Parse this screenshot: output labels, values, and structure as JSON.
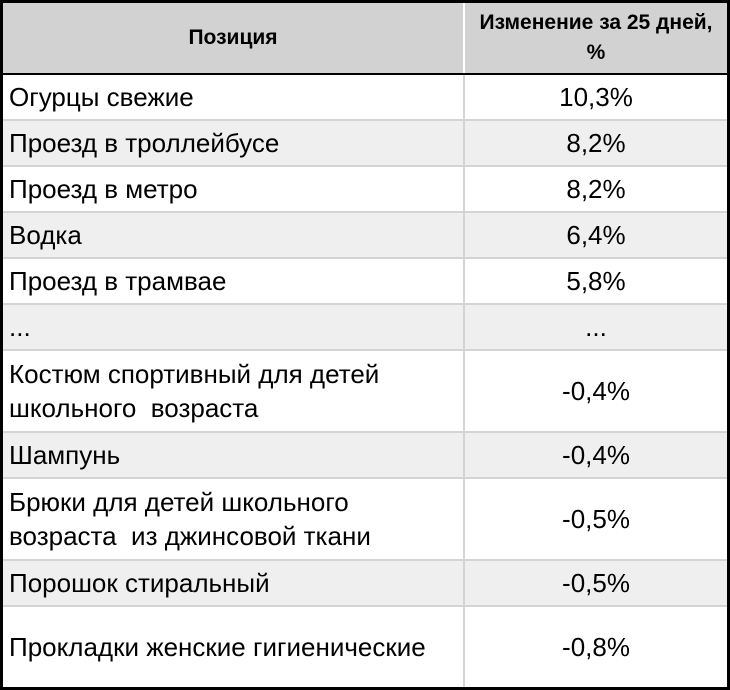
{
  "table": {
    "header": {
      "position": "Позиция",
      "change": "Изменение за 25 дней, %"
    },
    "rows": [
      {
        "name": "Огурцы свежие",
        "value": "10,3%"
      },
      {
        "name": "Проезд в троллейбусе",
        "value": "8,2%"
      },
      {
        "name": "Проезд в метро",
        "value": "8,2%"
      },
      {
        "name": "Водка",
        "value": "6,4%"
      },
      {
        "name": "Проезд в трамвае",
        "value": "5,8%"
      },
      {
        "name": "...",
        "value": "..."
      },
      {
        "name": "Костюм спортивный для детей школьного  возраста",
        "value": "-0,4%"
      },
      {
        "name": "Шампунь",
        "value": "-0,4%"
      },
      {
        "name": "Брюки для детей школьного возраста  из джинсовой ткани",
        "value": "-0,5%"
      },
      {
        "name": "Порошок стиральный",
        "value": "-0,5%"
      },
      {
        "name": "Прокладки женские гигиенические",
        "value": "-0,8%"
      }
    ]
  }
}
